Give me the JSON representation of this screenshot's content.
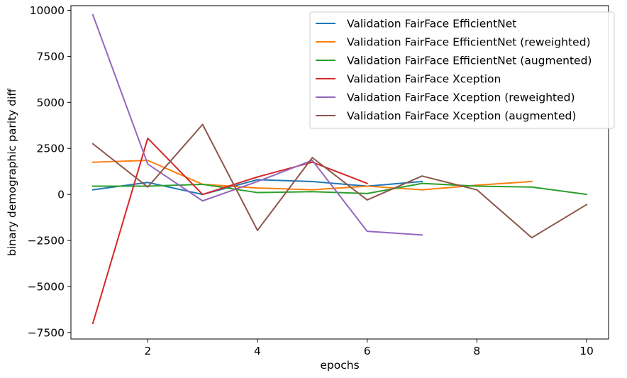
{
  "chart_data": {
    "type": "line",
    "title": "",
    "xlabel": "epochs",
    "ylabel": "binary demographic parity diff",
    "xlim": [
      0.6,
      10.4
    ],
    "ylim": [
      -7850,
      10250
    ],
    "xticks": [
      2,
      4,
      6,
      8,
      10
    ],
    "xtick_labels": [
      "2",
      "4",
      "6",
      "8",
      "10"
    ],
    "yticks": [
      -7500,
      -5000,
      -2500,
      0,
      2500,
      5000,
      7500,
      10000
    ],
    "ytick_labels": [
      "−7500",
      "−5000",
      "−2500",
      "0",
      "2500",
      "5000",
      "7500",
      "10000"
    ],
    "grid": false,
    "legend_position": "top-right",
    "series": [
      {
        "name": "Validation FairFace EfficientNet",
        "color": "#1f77b4",
        "x": [
          1,
          2,
          3,
          4,
          5,
          6,
          7
        ],
        "y": [
          250,
          650,
          0,
          800,
          700,
          450,
          700
        ]
      },
      {
        "name": "Validation FairFace EfficientNet (reweighted)",
        "color": "#ff7f0e",
        "x": [
          1,
          2,
          3,
          4,
          5,
          6,
          7,
          8,
          9
        ],
        "y": [
          1750,
          1850,
          550,
          350,
          250,
          450,
          250,
          500,
          700
        ]
      },
      {
        "name": "Validation FairFace EfficientNet (augmented)",
        "color": "#2ca02c",
        "x": [
          1,
          2,
          3,
          4,
          5,
          6,
          7,
          8,
          9,
          10
        ],
        "y": [
          450,
          450,
          550,
          100,
          150,
          50,
          600,
          450,
          400,
          0
        ]
      },
      {
        "name": "Validation FairFace Xception",
        "color": "#d62728",
        "x": [
          1,
          2,
          3,
          4,
          5,
          6
        ],
        "y": [
          -7000,
          3050,
          0,
          950,
          1750,
          600
        ]
      },
      {
        "name": "Validation FairFace Xception (reweighted)",
        "color": "#9467bd",
        "x": [
          1,
          2,
          3,
          4,
          5,
          6,
          7
        ],
        "y": [
          9750,
          1650,
          -350,
          700,
          1850,
          -2000,
          -2200
        ]
      },
      {
        "name": "Validation FairFace Xception (augmented)",
        "color": "#8c564b",
        "x": [
          1,
          2,
          3,
          4,
          5,
          6,
          7,
          8,
          9,
          10
        ],
        "y": [
          2750,
          400,
          3800,
          -1950,
          2000,
          -300,
          1000,
          250,
          -2350,
          -550
        ]
      }
    ]
  }
}
